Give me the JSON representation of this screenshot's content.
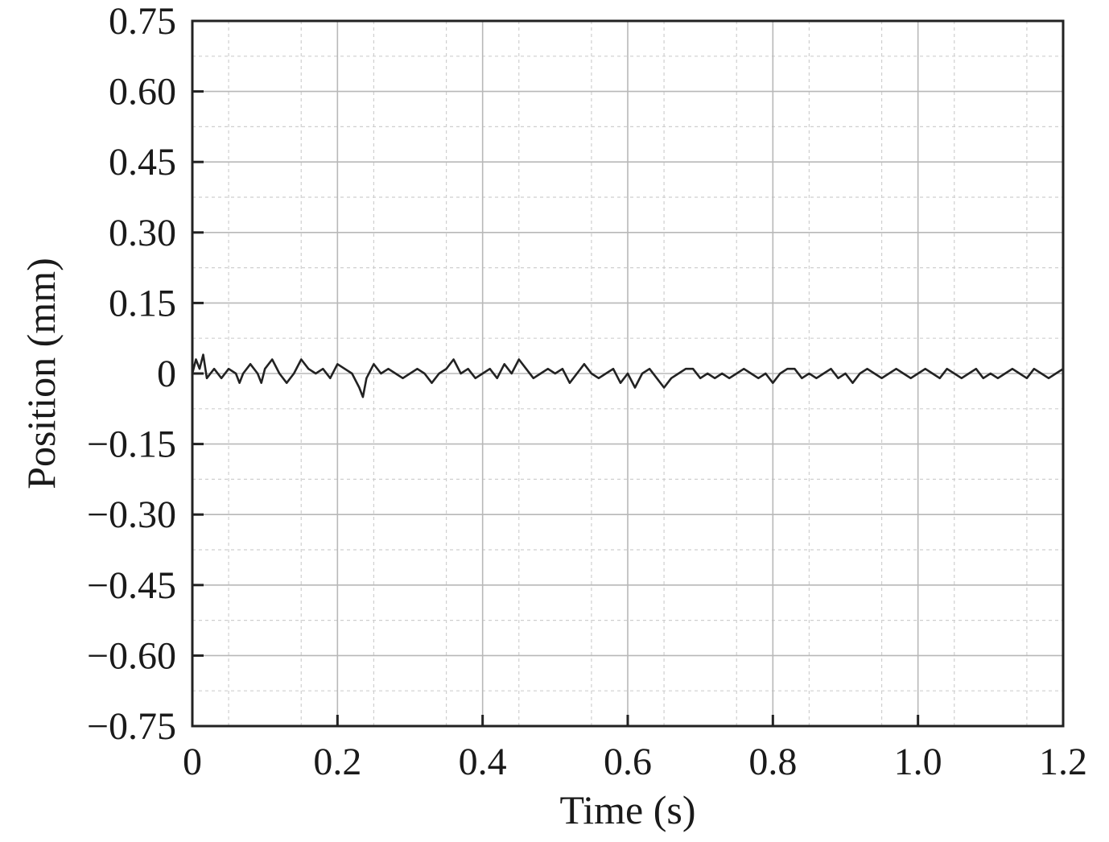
{
  "chart_data": {
    "type": "line",
    "xlabel": "Time (s)",
    "ylabel": "Position (mm)",
    "xlim": [
      0,
      1.2
    ],
    "ylim": [
      -0.75,
      0.75
    ],
    "x_ticks": [
      "0",
      "0.2",
      "0.4",
      "0.6",
      "0.8",
      "1.0",
      "1.2"
    ],
    "y_ticks": [
      "0.75",
      "0.60",
      "0.45",
      "0.30",
      "0.15",
      "0",
      "−0.15",
      "−0.30",
      "−0.45",
      "−0.60",
      "−0.75"
    ],
    "grid": true,
    "legend": "none",
    "line_color": "#222222",
    "series": [
      {
        "x": [
          0,
          0.005,
          0.01,
          0.015,
          0.02,
          0.025,
          0.03,
          0.04,
          0.05,
          0.06,
          0.065,
          0.07,
          0.08,
          0.09,
          0.095,
          0.1,
          0.11,
          0.12,
          0.13,
          0.14,
          0.15,
          0.16,
          0.17,
          0.18,
          0.19,
          0.2,
          0.21,
          0.22,
          0.23,
          0.235,
          0.24,
          0.25,
          0.26,
          0.27,
          0.28,
          0.29,
          0.3,
          0.31,
          0.32,
          0.33,
          0.34,
          0.35,
          0.36,
          0.37,
          0.38,
          0.39,
          0.4,
          0.41,
          0.42,
          0.43,
          0.44,
          0.45,
          0.46,
          0.47,
          0.48,
          0.49,
          0.5,
          0.51,
          0.52,
          0.53,
          0.54,
          0.55,
          0.56,
          0.57,
          0.58,
          0.59,
          0.6,
          0.61,
          0.62,
          0.63,
          0.64,
          0.65,
          0.66,
          0.67,
          0.68,
          0.69,
          0.7,
          0.71,
          0.72,
          0.73,
          0.74,
          0.75,
          0.76,
          0.77,
          0.78,
          0.79,
          0.8,
          0.81,
          0.82,
          0.83,
          0.84,
          0.85,
          0.86,
          0.87,
          0.88,
          0.89,
          0.9,
          0.91,
          0.92,
          0.93,
          0.94,
          0.95,
          0.96,
          0.97,
          0.98,
          0.99,
          1.0,
          1.01,
          1.02,
          1.03,
          1.04,
          1.05,
          1.06,
          1.07,
          1.08,
          1.09,
          1.1,
          1.11,
          1.12,
          1.13,
          1.14,
          1.15,
          1.16,
          1.17,
          1.18,
          1.19,
          1.2
        ],
        "y": [
          0.0,
          0.03,
          0.01,
          0.04,
          -0.01,
          0.0,
          0.01,
          -0.01,
          0.01,
          0.0,
          -0.02,
          0.0,
          0.02,
          0.0,
          -0.02,
          0.01,
          0.03,
          0.0,
          -0.02,
          0.0,
          0.03,
          0.01,
          0.0,
          0.01,
          -0.01,
          0.02,
          0.01,
          0.0,
          -0.03,
          -0.05,
          -0.01,
          0.02,
          0.0,
          0.01,
          0.0,
          -0.01,
          0.0,
          0.01,
          0.0,
          -0.02,
          0.0,
          0.01,
          0.03,
          0.0,
          0.01,
          -0.01,
          0.0,
          0.01,
          -0.01,
          0.02,
          0.0,
          0.03,
          0.01,
          -0.01,
          0.0,
          0.01,
          0.0,
          0.01,
          -0.02,
          0.0,
          0.02,
          0.0,
          -0.01,
          0.0,
          0.01,
          -0.02,
          0.0,
          -0.03,
          0.0,
          0.01,
          -0.01,
          -0.03,
          -0.01,
          0.0,
          0.01,
          0.01,
          -0.01,
          0.0,
          -0.01,
          0.0,
          -0.01,
          0.0,
          0.01,
          0.0,
          -0.01,
          0.0,
          -0.02,
          0.0,
          0.01,
          0.01,
          -0.01,
          0.0,
          -0.01,
          0.0,
          0.01,
          -0.01,
          0.0,
          -0.02,
          0.0,
          0.01,
          0.0,
          -0.01,
          0.0,
          0.01,
          0.0,
          -0.01,
          0.0,
          0.01,
          0.0,
          -0.01,
          0.01,
          0.0,
          -0.01,
          0.0,
          0.01,
          -0.01,
          0.0,
          -0.01,
          0.0,
          0.01,
          0.0,
          -0.01,
          0.01,
          0.0,
          -0.01,
          0.0,
          0.01
        ]
      }
    ]
  }
}
